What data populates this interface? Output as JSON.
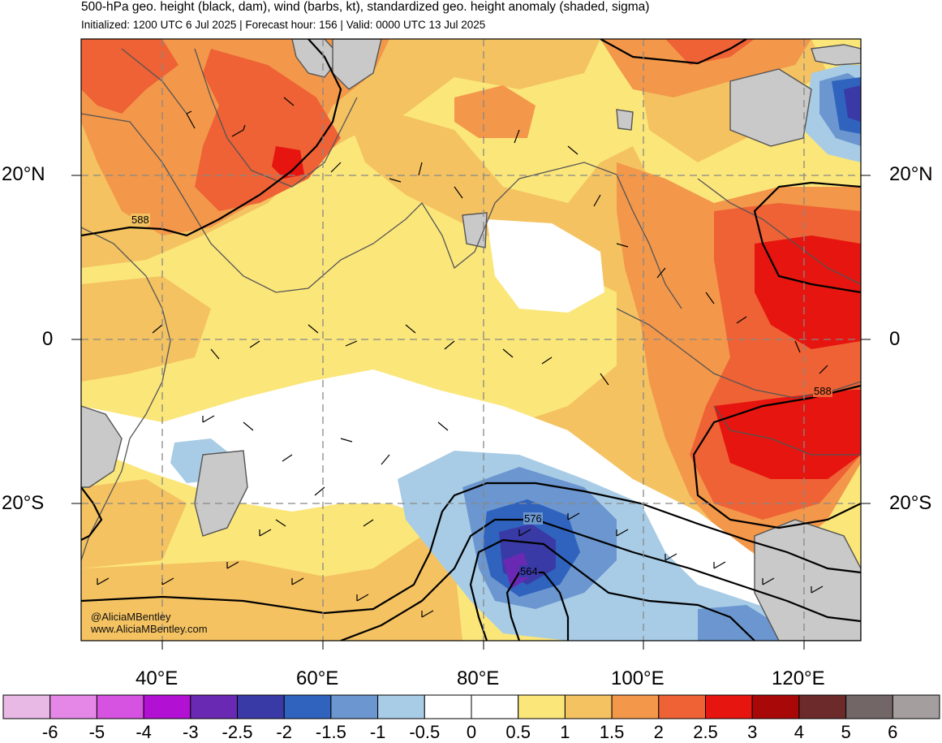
{
  "header": {
    "title": "500-hPa geo. height (black, dam), wind (barbs, kt), standardized geo. height anomaly (shaded, sigma)",
    "subtitle": "Initialized: 1200 UTC 6 Jul 2025 | Forecast hour: 156 | Valid: 0000 UTC 13 Jul 2025"
  },
  "map": {
    "lat_labels": {
      "n20": "20°N",
      "eq": "0",
      "s20": "20°S"
    },
    "lon_labels": [
      "40°E",
      "60°E",
      "80°E",
      "100°E",
      "120°E"
    ],
    "contour_labels": [
      "588",
      "588",
      "576",
      "564"
    ],
    "credit": [
      "@AliciaMBentley",
      "www.AliciaMBentley.com"
    ]
  },
  "colorbar": {
    "labels": [
      "-6",
      "-5",
      "-4",
      "-3",
      "-2.5",
      "-2",
      "-1.5",
      "-1",
      "-0.5",
      "0",
      "0.5",
      "1",
      "1.5",
      "2",
      "2.5",
      "3",
      "4",
      "5",
      "6"
    ],
    "colors": [
      "#e9b9e6",
      "#e487e6",
      "#d652e0",
      "#b211d4",
      "#6a29b3",
      "#3a3aa6",
      "#2f63bd",
      "#6b96cf",
      "#a8cce6",
      "#ffffff",
      "#ffffff",
      "#fbe67a",
      "#f4c261",
      "#f3974a",
      "#ee6235",
      "#e6150f",
      "#a80808",
      "#6d2a2a",
      "#726666",
      "#a59e9e"
    ],
    "colors_note": ""
  }
}
